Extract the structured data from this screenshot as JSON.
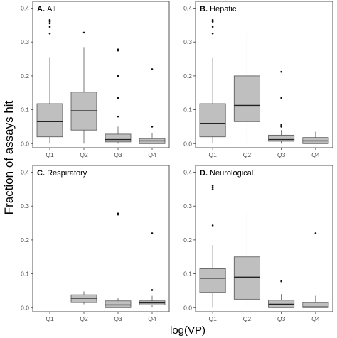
{
  "ylabel": "Fraction of assays hit",
  "xlabel": "log(VP)",
  "chart_data": [
    {
      "type": "box",
      "title_letter": "A.",
      "title": "All",
      "categories": [
        "Q1",
        "Q2",
        "Q3",
        "Q4"
      ],
      "yticks": [
        "0.0",
        "0.1",
        "0.2",
        "0.3",
        "0.4"
      ],
      "ylim": [
        -0.012,
        0.42
      ],
      "boxes": [
        {
          "cat": "Q1",
          "min": 0.0,
          "q1": 0.02,
          "median": 0.065,
          "q3": 0.118,
          "max": 0.255,
          "outliers": [
            0.325,
            0.345,
            0.355,
            0.36,
            0.365
          ]
        },
        {
          "cat": "Q2",
          "min": 0.0,
          "q1": 0.04,
          "median": 0.097,
          "q3": 0.152,
          "max": 0.285,
          "outliers": [
            0.328
          ]
        },
        {
          "cat": "Q3",
          "min": 0.0,
          "q1": 0.005,
          "median": 0.012,
          "q3": 0.028,
          "max": 0.05,
          "outliers": [
            0.08,
            0.135,
            0.2,
            0.275,
            0.278
          ]
        },
        {
          "cat": "Q4",
          "min": 0.0,
          "q1": 0.0,
          "median": 0.008,
          "q3": 0.015,
          "max": 0.03,
          "outliers": [
            0.05,
            0.22
          ]
        }
      ]
    },
    {
      "type": "box",
      "title_letter": "B.",
      "title": "Hepatic",
      "categories": [
        "Q1",
        "Q2",
        "Q3",
        "Q4"
      ],
      "yticks": [
        "0.0",
        "0.1",
        "0.2",
        "0.3",
        "0.4"
      ],
      "ylim": [
        -0.012,
        0.42
      ],
      "boxes": [
        {
          "cat": "Q1",
          "min": 0.0,
          "q1": 0.02,
          "median": 0.06,
          "q3": 0.118,
          "max": 0.255,
          "outliers": [
            0.325,
            0.345,
            0.36,
            0.365
          ]
        },
        {
          "cat": "Q2",
          "min": 0.0,
          "q1": 0.065,
          "median": 0.113,
          "q3": 0.2,
          "max": 0.328,
          "outliers": []
        },
        {
          "cat": "Q3",
          "min": 0.0,
          "q1": 0.007,
          "median": 0.012,
          "q3": 0.025,
          "max": 0.04,
          "outliers": [
            0.05,
            0.055,
            0.135,
            0.212
          ]
        },
        {
          "cat": "Q4",
          "min": 0.0,
          "q1": 0.0,
          "median": 0.008,
          "q3": 0.018,
          "max": 0.035,
          "outliers": []
        }
      ]
    },
    {
      "type": "box",
      "title_letter": "C.",
      "title": "Respiratory",
      "categories": [
        "Q1",
        "Q2",
        "Q3",
        "Q4"
      ],
      "yticks": [
        "0.0",
        "0.1",
        "0.2",
        "0.3",
        "0.4"
      ],
      "ylim": [
        -0.012,
        0.42
      ],
      "boxes": [
        {
          "cat": "Q2",
          "min": 0.01,
          "q1": 0.015,
          "median": 0.028,
          "q3": 0.038,
          "max": 0.048,
          "outliers": []
        },
        {
          "cat": "Q3",
          "min": 0.0,
          "q1": 0.0,
          "median": 0.008,
          "q3": 0.02,
          "max": 0.03,
          "outliers": [
            0.275,
            0.278
          ]
        },
        {
          "cat": "Q4",
          "min": 0.0,
          "q1": 0.008,
          "median": 0.014,
          "q3": 0.02,
          "max": 0.035,
          "outliers": [
            0.052,
            0.22
          ]
        }
      ]
    },
    {
      "type": "box",
      "title_letter": "D.",
      "title": "Neurological",
      "categories": [
        "Q1",
        "Q2",
        "Q3",
        "Q4"
      ],
      "yticks": [
        "0.0",
        "0.1",
        "0.2",
        "0.3",
        "0.4"
      ],
      "ylim": [
        -0.012,
        0.42
      ],
      "boxes": [
        {
          "cat": "Q1",
          "min": 0.0,
          "q1": 0.045,
          "median": 0.087,
          "q3": 0.115,
          "max": 0.185,
          "outliers": [
            0.243,
            0.35,
            0.355,
            0.36
          ]
        },
        {
          "cat": "Q2",
          "min": 0.0,
          "q1": 0.025,
          "median": 0.09,
          "q3": 0.15,
          "max": 0.285,
          "outliers": []
        },
        {
          "cat": "Q3",
          "min": 0.0,
          "q1": 0.0,
          "median": 0.01,
          "q3": 0.022,
          "max": 0.04,
          "outliers": [
            0.078
          ]
        },
        {
          "cat": "Q4",
          "min": 0.0,
          "q1": 0.0,
          "median": 0.002,
          "q3": 0.015,
          "max": 0.035,
          "outliers": [
            0.22
          ]
        }
      ]
    }
  ]
}
